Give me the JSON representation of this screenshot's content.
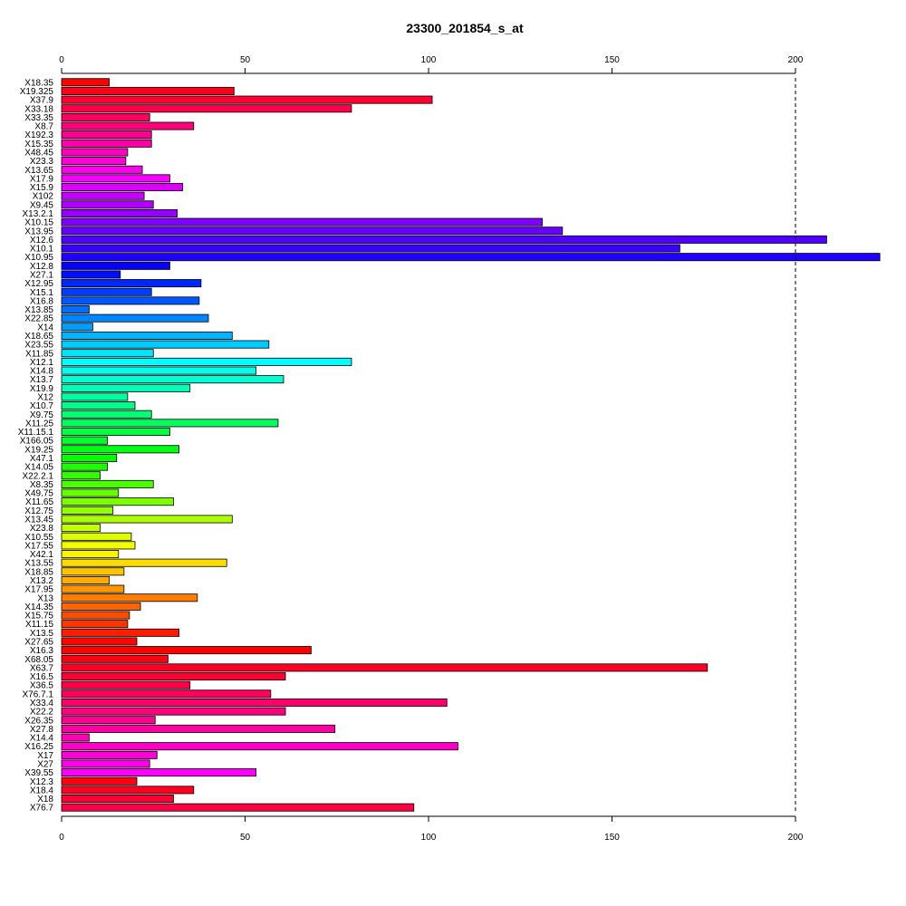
{
  "chart_data": {
    "type": "bar",
    "orientation": "horizontal",
    "title": "23300_201854_s_at",
    "xlabel": "",
    "ylabel": "",
    "xlim": [
      0,
      223
    ],
    "xticks": [
      "0",
      "50",
      "100",
      "150",
      "200"
    ],
    "reference_line": 200,
    "grid": false,
    "legend": "none",
    "categories": [
      "X18.35",
      "X19.325",
      "X37.9",
      "X33.18",
      "X33.35",
      "X8.7",
      "X192.3",
      "X15.35",
      "X48.45",
      "X23.3",
      "X13.65",
      "X17.9",
      "X15.9",
      "X102",
      "X9.45",
      "X13.2.1",
      "X10.15",
      "X13.95",
      "X12.6",
      "X10.1",
      "X10.95",
      "X12.8",
      "X27.1",
      "X12.95",
      "X15.1",
      "X16.8",
      "X13.85",
      "X22.85",
      "X14",
      "X18.65",
      "X23.55",
      "X11.85",
      "X12.1",
      "X14.8",
      "X13.7",
      "X19.9",
      "X12",
      "X10.7",
      "X9.75",
      "X11.25",
      "X11.15.1",
      "X166.05",
      "X19.25",
      "X47.1",
      "X14.05",
      "X22.2.1",
      "X8.35",
      "X49.75",
      "X11.65",
      "X12.75",
      "X13.45",
      "X23.8",
      "X10.55",
      "X17.55",
      "X42.1",
      "X13.55",
      "X18.85",
      "X13.2",
      "X17.95",
      "X13",
      "X14.35",
      "X15.75",
      "X11.15",
      "X13.5",
      "X27.65",
      "X16.3",
      "X68.05",
      "X63.7",
      "X16.5",
      "X36.5",
      "X76.7.1",
      "X33.4",
      "X22.2",
      "X26.35",
      "X27.8",
      "X14.4",
      "X16.25",
      "X17",
      "X27",
      "X39.55",
      "X12.3",
      "X18.4",
      "X18",
      "X76.7"
    ],
    "values": [
      13,
      47,
      101,
      79,
      24,
      36,
      24.5,
      24.5,
      18,
      17.5,
      22,
      29.5,
      33,
      22.5,
      25,
      31.5,
      131,
      136.5,
      208.5,
      168.5,
      223,
      29.5,
      16,
      38,
      24.5,
      37.5,
      7.5,
      40,
      8.5,
      46.5,
      56.5,
      25,
      79,
      53,
      60.5,
      35,
      18,
      20,
      24.5,
      59,
      29.5,
      12.5,
      32,
      15,
      12.5,
      10.5,
      25,
      15.5,
      30.5,
      14,
      46.5,
      10.5,
      19,
      20,
      15.5,
      45,
      17,
      13,
      17,
      37,
      21.5,
      18.5,
      18,
      32,
      20.5,
      68,
      29,
      176,
      61,
      35,
      57,
      105,
      61,
      25.5,
      74.5,
      7.5,
      108,
      26,
      24,
      53,
      20.5,
      36,
      30.5,
      96
    ],
    "colors": [
      "#ff0000",
      "#ff0018",
      "#ff0030",
      "#ff0048",
      "#ff0060",
      "#ff0078",
      "#ff0090",
      "#ff00a8",
      "#ff00bf",
      "#ff00d7",
      "#ff00ef",
      "#f600ff",
      "#de00ff",
      "#c600ff",
      "#af00ff",
      "#9700ff",
      "#7f00ff",
      "#6700ff",
      "#4f00ff",
      "#3700ff",
      "#1f00ff",
      "#0700ff",
      "#000eff",
      "#0026ff",
      "#003eff",
      "#0056ff",
      "#006eff",
      "#0086ff",
      "#009dff",
      "#00b5ff",
      "#00cdff",
      "#00e5ff",
      "#00fdff",
      "#00ffea",
      "#00ffd2",
      "#00ffba",
      "#00ffa2",
      "#00ff8a",
      "#00ff72",
      "#00ff5a",
      "#00ff42",
      "#00ff2b",
      "#00ff13",
      "#04ff00",
      "#1cff00",
      "#34ff00",
      "#4cff00",
      "#64ff00",
      "#7cff00",
      "#94ff00",
      "#acff00",
      "#c4ff00",
      "#dbff00",
      "#f3ff00",
      "#fff400",
      "#ffdc00",
      "#ffc400",
      "#ffad00",
      "#ff9500",
      "#ff7d00",
      "#ff6500",
      "#ff4d00",
      "#ff3500",
      "#ff1d00",
      "#ff0500",
      "#ff0000",
      "#ff0012",
      "#ff0024",
      "#ff0036",
      "#ff0048",
      "#ff005a",
      "#ff006c",
      "#ff007e",
      "#ff0090",
      "#ff00a2",
      "#ff00b4",
      "#ff00c6",
      "#ff00d8",
      "#ff00ea",
      "#ff00fc",
      "#ff000e",
      "#ff0020",
      "#ff0032",
      "#ff0044"
    ]
  }
}
